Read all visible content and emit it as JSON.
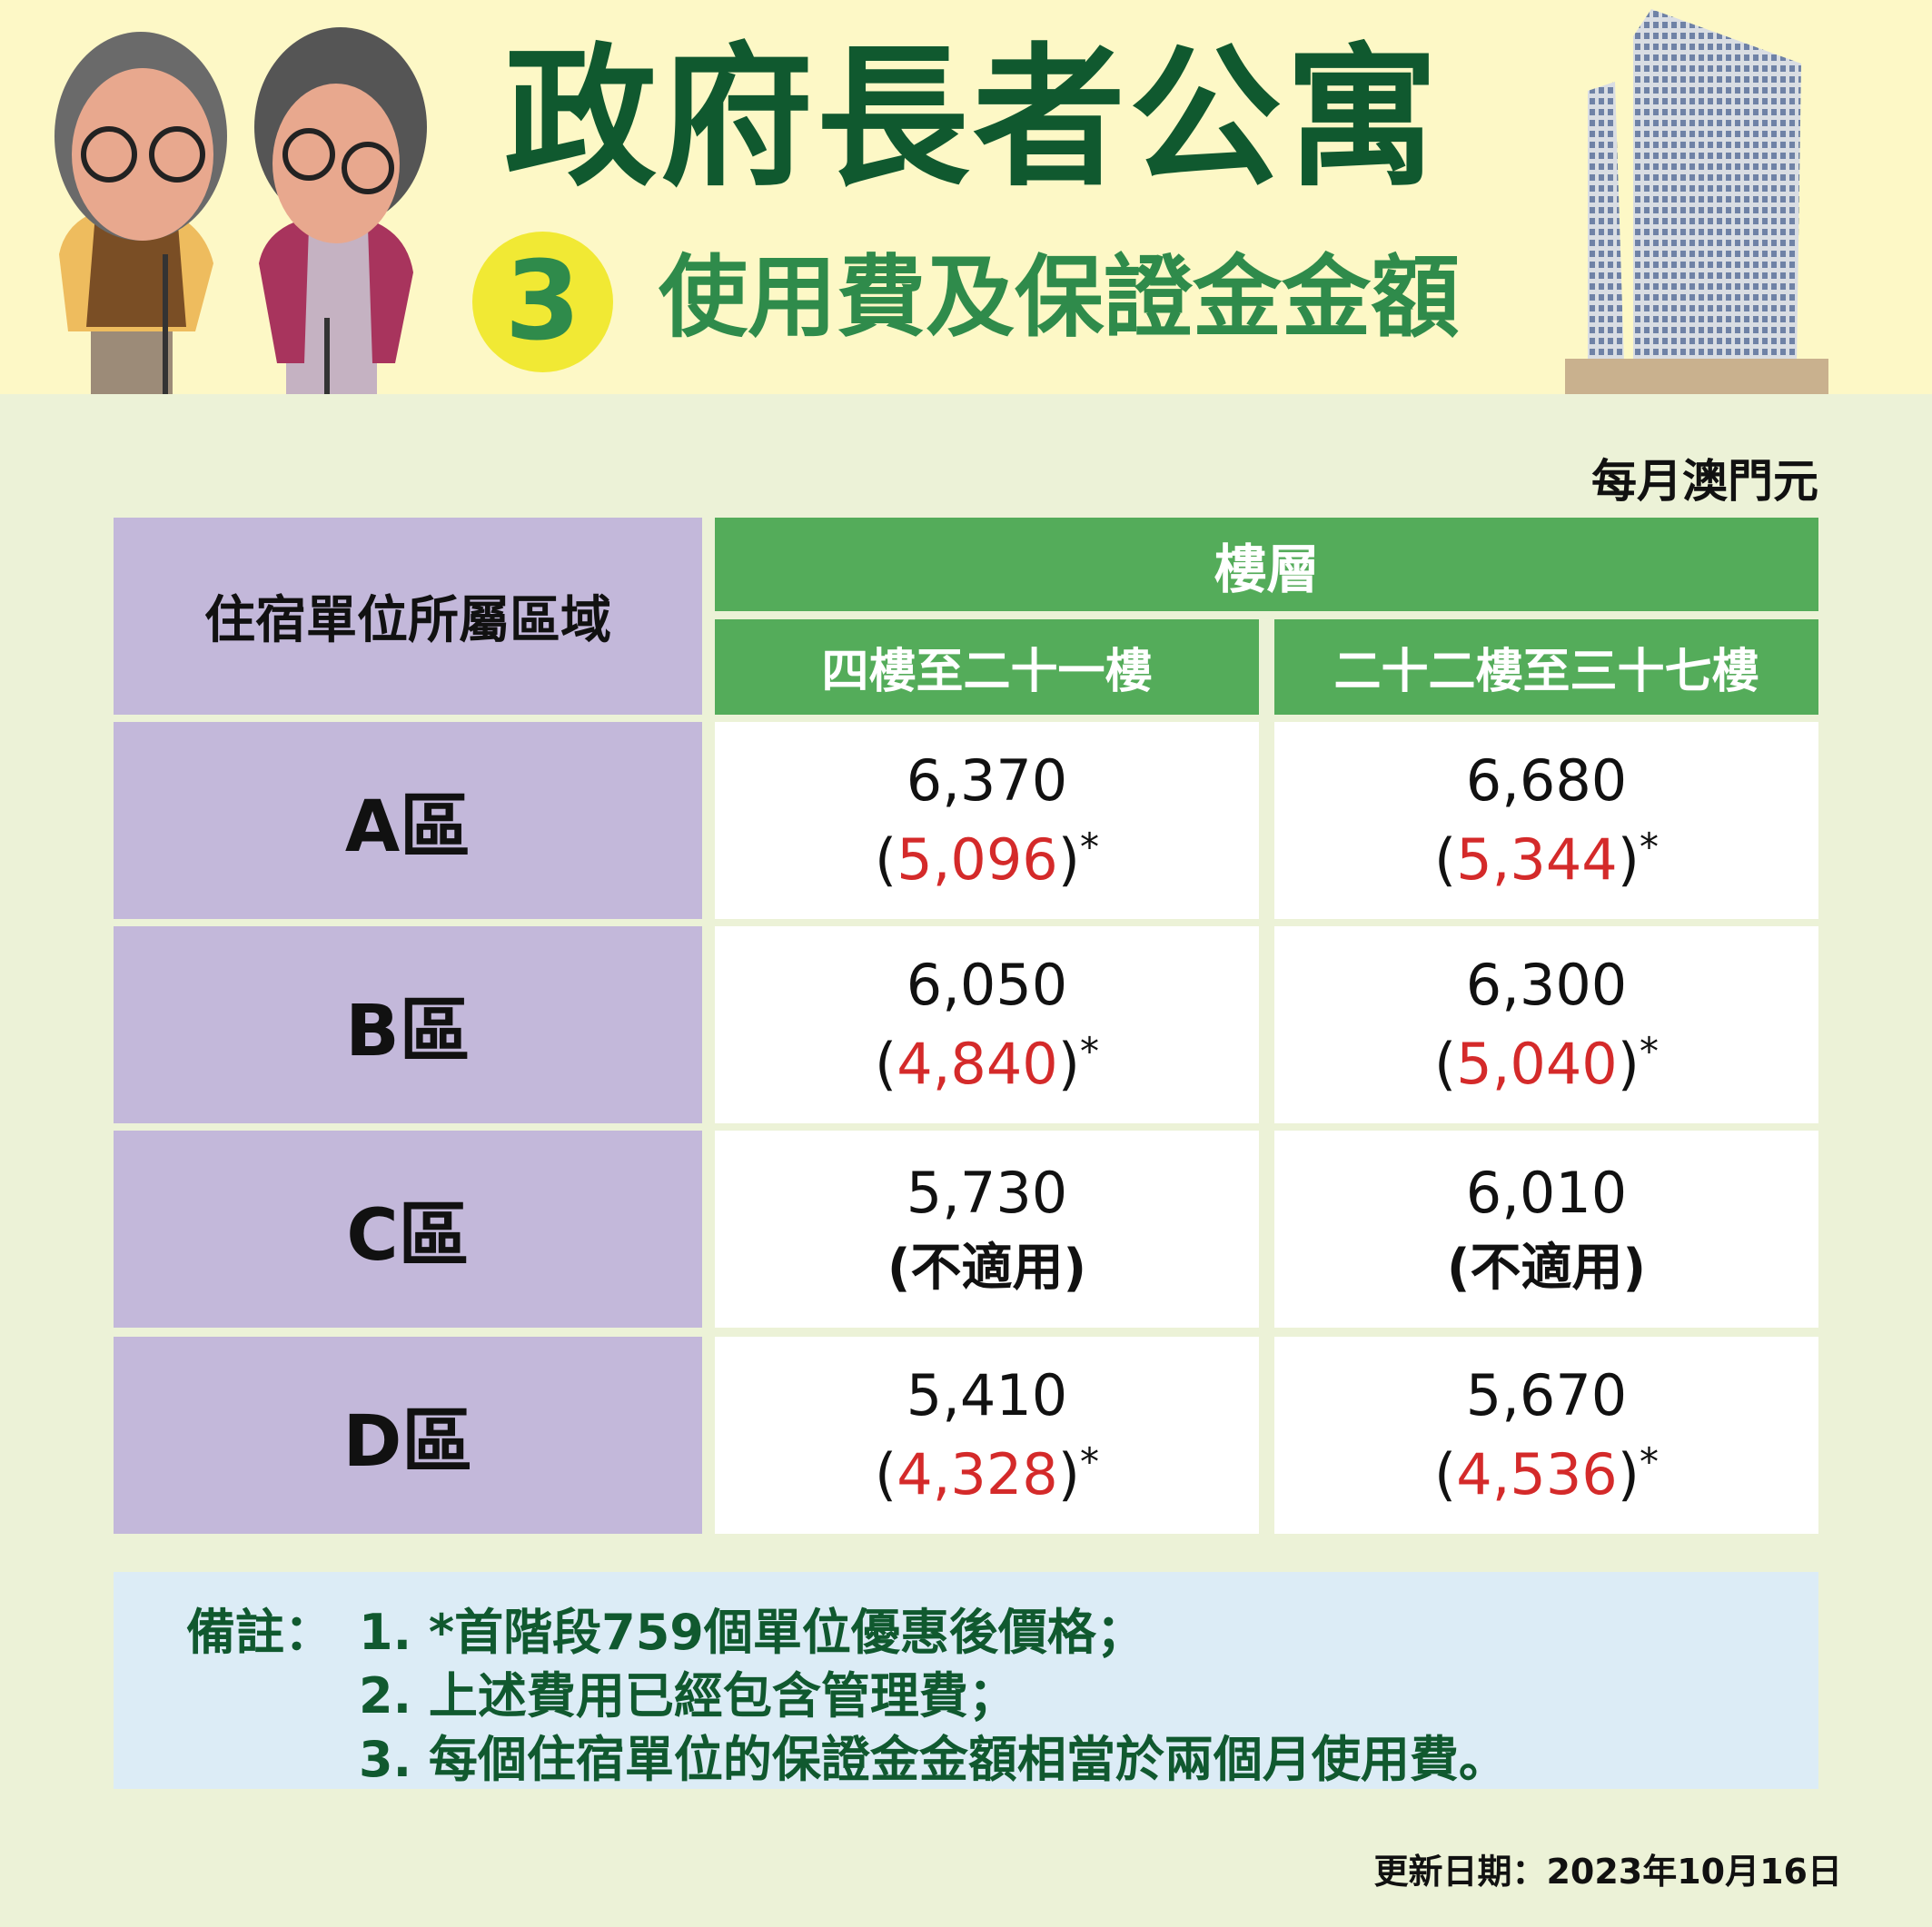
{
  "header": {
    "title": "政府長者公寓",
    "step_number": "3",
    "subtitle": "使用費及保證金金額"
  },
  "unit_label": "每月澳門元",
  "table": {
    "row_header": "住宿單位所屬區域",
    "group_header": "樓層",
    "columns": [
      "四樓至二十一樓",
      "二十二樓至三十七樓"
    ],
    "rows": [
      {
        "zone": "A區",
        "cells": [
          {
            "price": "6,370",
            "discount": "5,096",
            "note": "*"
          },
          {
            "price": "6,680",
            "discount": "5,344",
            "note": "*"
          }
        ]
      },
      {
        "zone": "B區",
        "cells": [
          {
            "price": "6,050",
            "discount": "4,840",
            "note": "*"
          },
          {
            "price": "6,300",
            "discount": "5,040",
            "note": "*"
          }
        ]
      },
      {
        "zone": "C區",
        "cells": [
          {
            "price": "5,730",
            "na": "(不適用)"
          },
          {
            "price": "6,010",
            "na": "(不適用)"
          }
        ]
      },
      {
        "zone": "D區",
        "cells": [
          {
            "price": "5,410",
            "discount": "4,328",
            "note": "*"
          },
          {
            "price": "5,670",
            "discount": "4,536",
            "note": "*"
          }
        ]
      }
    ]
  },
  "notes": {
    "label": "備註：",
    "items": [
      "1. *首階段759個單位優惠後價格；",
      "2. 上述費用已經包含管理費；",
      "3. 每個住宿單位的保證金金額相當於兩個月使用費。"
    ]
  },
  "update_date": "更新日期：2023年10月16日",
  "colors": {
    "title": "#10592f",
    "subtitle": "#2f8b4b",
    "header_bg": "#fdf8c6",
    "zone_bg": "#c3b8da",
    "floor_bg": "#54ac5a",
    "discount": "#d42a2a",
    "notes_bg": "#dcecf6"
  }
}
